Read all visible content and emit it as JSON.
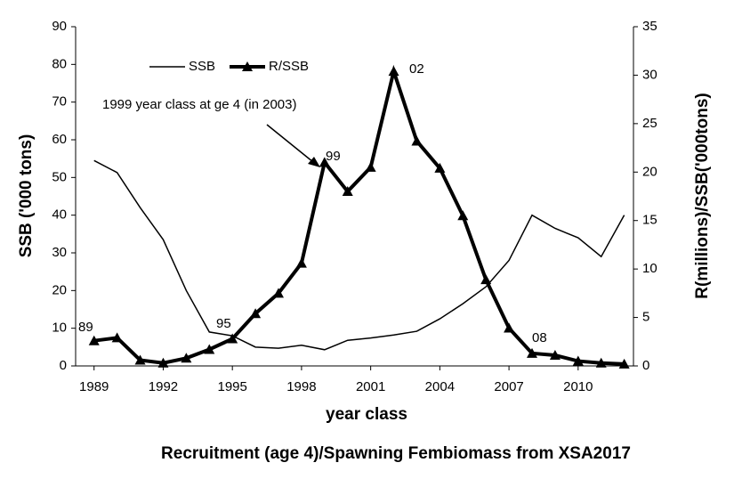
{
  "chart_data": {
    "type": "line",
    "title": "Recruitment (age 4)/Spawning Fembiomass from XSA2017",
    "x_label": "year class",
    "y_label": "SSB ('000 tons)",
    "y2_label": "R(millions)/SSB('000tons)",
    "x": [
      1989,
      1990,
      1991,
      1992,
      1993,
      1994,
      1995,
      1996,
      1997,
      1998,
      1999,
      2000,
      2001,
      2002,
      2003,
      2004,
      2005,
      2006,
      2007,
      2008,
      2009,
      2010,
      2011,
      2012
    ],
    "series": [
      {
        "name": "SSB",
        "color": "#000000",
        "values": [
          54.5,
          51.3,
          42,
          33.5,
          20,
          9,
          8,
          5,
          4.7,
          5.5,
          4.3,
          6.8,
          7.4,
          8.2,
          9.2,
          12.5,
          16.5,
          21,
          28,
          40,
          36.5,
          34,
          29,
          40
        ]
      },
      {
        "name": "R/SSB",
        "color": "#000000",
        "axis": "y2",
        "values": [
          2.6,
          2.9,
          0.6,
          0.3,
          0.8,
          1.7,
          2.8,
          5.4,
          7.5,
          10.6,
          21,
          18,
          20.5,
          30.4,
          23.2,
          20.4,
          15.5,
          8.9,
          3.9,
          1.3,
          1.1,
          0.5,
          0.3,
          0.2
        ]
      }
    ],
    "xlim": [
      1988.2,
      2012.4
    ],
    "xticks": [
      1989,
      1992,
      1995,
      1998,
      2001,
      2004,
      2007,
      2010
    ],
    "ylim": [
      0,
      90
    ],
    "yticks": [
      0,
      10,
      20,
      30,
      40,
      50,
      60,
      70,
      80,
      90
    ],
    "y2lim": [
      0,
      35
    ],
    "y2ticks": [
      0,
      5,
      10,
      15,
      20,
      25,
      30,
      35
    ],
    "annotations": [
      "89",
      "95",
      "99",
      "02",
      "08",
      "1999 year class at ge 4 (in 2003)"
    ],
    "legend": "top"
  }
}
